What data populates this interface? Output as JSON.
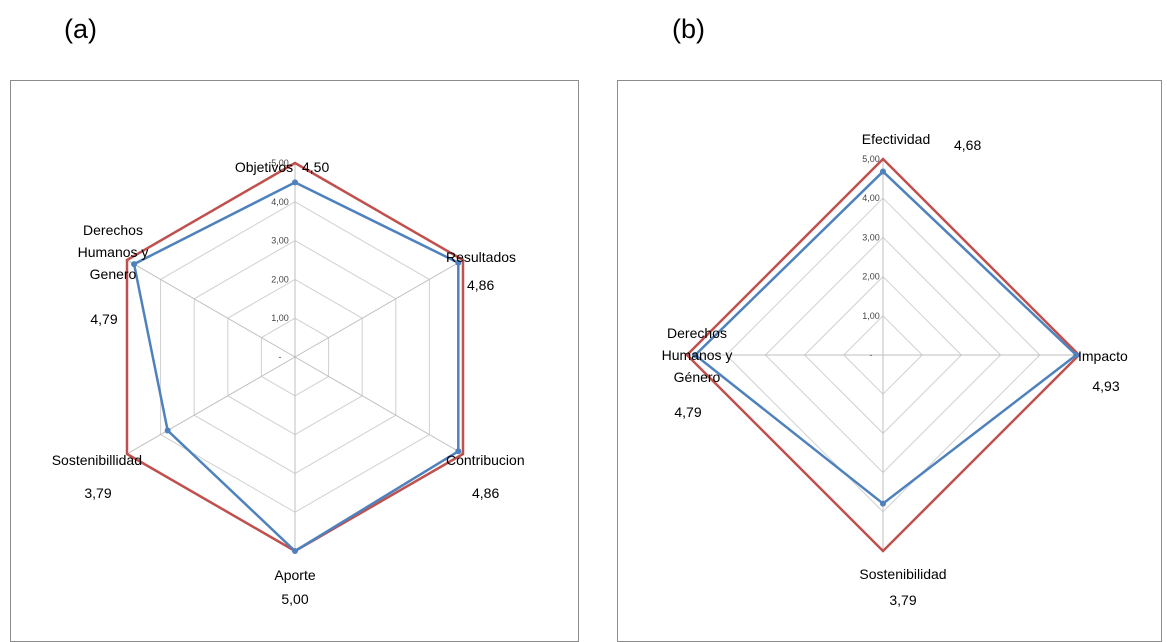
{
  "panels": {
    "a": {
      "letter": "(a)"
    },
    "b": {
      "letter": "(b)"
    }
  },
  "colors": {
    "series_blue": "#4f81bd",
    "series_red": "#c0504d",
    "grid": "#d0d0d0",
    "axis": "#bfbfbf"
  },
  "chart_data": [
    {
      "type": "radar",
      "panel": "(a)",
      "axes": [
        {
          "label_lines": [
            "Objetivos"
          ],
          "value_text": "4,50"
        },
        {
          "label_lines": [
            "Resultados"
          ],
          "value_text": "4,86"
        },
        {
          "label_lines": [
            "Contribucion"
          ],
          "value_text": "4,86"
        },
        {
          "label_lines": [
            "Aporte"
          ],
          "value_text": "5,00"
        },
        {
          "label_lines": [
            "Sostenibillidad"
          ],
          "value_text": "3,79"
        },
        {
          "label_lines": [
            "Derechos",
            "Humanos y",
            "Genero"
          ],
          "value_text": "4,79"
        }
      ],
      "rlim": [
        0,
        5
      ],
      "ticks": [
        "-",
        "1,00",
        "2,00",
        "3,00",
        "4,00",
        "5,00"
      ],
      "series": [
        {
          "color": "#c0504d",
          "values": [
            5,
            5,
            5,
            5,
            5,
            5
          ],
          "markers": false
        },
        {
          "color": "#4f81bd",
          "values": [
            4.5,
            4.86,
            4.86,
            5.0,
            3.79,
            4.79
          ],
          "markers": true
        }
      ]
    },
    {
      "type": "radar",
      "panel": "(b)",
      "axes": [
        {
          "label_lines": [
            "Efectividad"
          ],
          "value_text": "4,68"
        },
        {
          "label_lines": [
            "Impacto"
          ],
          "value_text": "4,93"
        },
        {
          "label_lines": [
            "Sostenibilidad"
          ],
          "value_text": "3,79"
        },
        {
          "label_lines": [
            "Derechos",
            "Humanos y",
            "Género"
          ],
          "value_text": "4,79"
        }
      ],
      "rlim": [
        0,
        5
      ],
      "ticks": [
        "-",
        "1,00",
        "2,00",
        "3,00",
        "4,00",
        "5,00"
      ],
      "series": [
        {
          "color": "#c0504d",
          "values": [
            5,
            5,
            5,
            5
          ],
          "markers": false
        },
        {
          "color": "#4f81bd",
          "values": [
            4.68,
            4.93,
            3.79,
            4.79
          ],
          "markers": true
        }
      ]
    }
  ]
}
